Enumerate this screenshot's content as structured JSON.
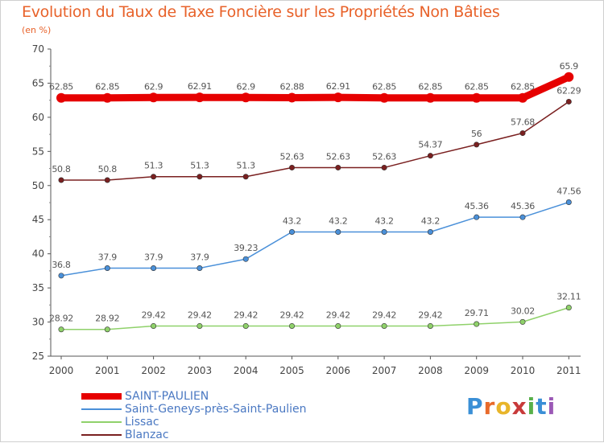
{
  "chart_data": {
    "type": "line",
    "title": "Evolution du Taux de Taxe Foncière sur les Propriétés Non Bâties",
    "subtitle": "(en %)",
    "categories": [
      "2000",
      "2001",
      "2002",
      "2003",
      "2004",
      "2005",
      "2006",
      "2007",
      "2008",
      "2009",
      "2010",
      "2011"
    ],
    "ylim": [
      25,
      70
    ],
    "yticks": [
      25,
      30,
      35,
      40,
      45,
      50,
      55,
      60,
      65,
      70
    ],
    "grid": false,
    "legend_position": "bottom-left",
    "series": [
      {
        "name": "SAINT-PAULIEN",
        "color": "#e60000",
        "values": [
          62.85,
          62.85,
          62.9,
          62.91,
          62.9,
          62.88,
          62.91,
          62.85,
          62.85,
          62.85,
          62.85,
          65.9
        ],
        "labels": [
          "62.85",
          "62.85",
          "62.9",
          "62.91",
          "62.9",
          "62.88",
          "62.91",
          "62.85",
          "62.85",
          "62.85",
          "62.85",
          "65.9"
        ]
      },
      {
        "name": "Saint-Geneys-près-Saint-Paulien",
        "color": "#4a90d9",
        "values": [
          36.8,
          37.9,
          37.9,
          37.9,
          39.23,
          43.2,
          43.2,
          43.2,
          43.2,
          45.36,
          45.36,
          47.56
        ],
        "labels": [
          "36.8",
          "37.9",
          "37.9",
          "37.9",
          "39.23",
          "43.2",
          "43.2",
          "43.2",
          "43.2",
          "45.36",
          "45.36",
          "47.56"
        ]
      },
      {
        "name": "Lissac",
        "color": "#8fd16a",
        "values": [
          28.92,
          28.92,
          29.42,
          29.42,
          29.42,
          29.42,
          29.42,
          29.42,
          29.42,
          29.71,
          30.02,
          32.11
        ],
        "labels": [
          "28.92",
          "28.92",
          "29.42",
          "29.42",
          "29.42",
          "29.42",
          "29.42",
          "29.42",
          "29.42",
          "29.71",
          "30.02",
          "32.11"
        ]
      },
      {
        "name": "Blanzac",
        "color": "#7a2020",
        "values": [
          50.8,
          50.8,
          51.3,
          51.3,
          51.3,
          52.63,
          52.63,
          52.63,
          54.37,
          56,
          57.68,
          62.29
        ],
        "labels": [
          "50.8",
          "50.8",
          "51.3",
          "51.3",
          "51.3",
          "52.63",
          "52.63",
          "52.63",
          "54.37",
          "56",
          "57.68",
          "62.29"
        ]
      }
    ]
  },
  "logo": {
    "letters": [
      "P",
      "r",
      "o",
      "x",
      "i",
      "t",
      "i"
    ]
  }
}
